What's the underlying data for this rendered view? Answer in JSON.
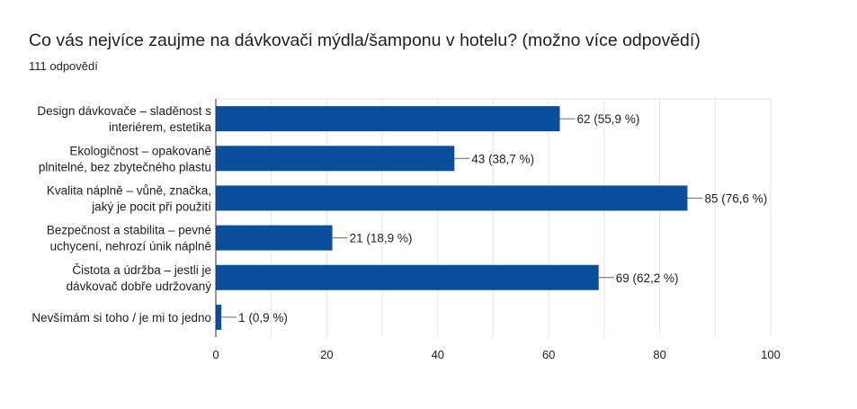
{
  "header": {
    "title": "Co vás nejvíce zaujme na dávkovači mýdla/šamponu v hotelu? (možno více odpovědí)",
    "response_count": "111 odpovědí"
  },
  "chart_data": {
    "type": "bar",
    "orientation": "horizontal",
    "title": "Co vás nejvíce zaujme na dávkovači mýdla/šamponu v hotelu? (možno více odpovědí)",
    "subtitle": "111 odpovědí",
    "categories": [
      [
        "Design dávkovače – sladěnost s",
        "interiérem, estetika"
      ],
      [
        "Ekologičnost – opakovaně",
        "plnitelné, bez zbytečného plastu"
      ],
      [
        "Kvalita náplně – vůně, značka,",
        "jaký je pocit při použití"
      ],
      [
        "Bezpečnost a stabilita – pevné",
        "uchycení, nehrozí únik náplně"
      ],
      [
        "Čistota a údržba – jestli je",
        "dávkovač dobře udržovaný"
      ],
      [
        "Nevšímám si toho / je mi to jedno"
      ]
    ],
    "values": [
      62,
      43,
      85,
      21,
      69,
      1
    ],
    "data_labels": [
      "62 (55,9 %)",
      "43 (38,7 %)",
      "85 (76,6 %)",
      "21 (18,9 %)",
      "69 (62,2 %)",
      "1 (0,9 %)"
    ],
    "xlim": [
      0,
      100
    ],
    "xticks": [
      0,
      20,
      40,
      60,
      80,
      100
    ],
    "grid": true,
    "colors": {
      "bar": "#0b4f9c",
      "grid": "#e6e6e6",
      "axis": "#333333",
      "text": "#202124"
    }
  }
}
